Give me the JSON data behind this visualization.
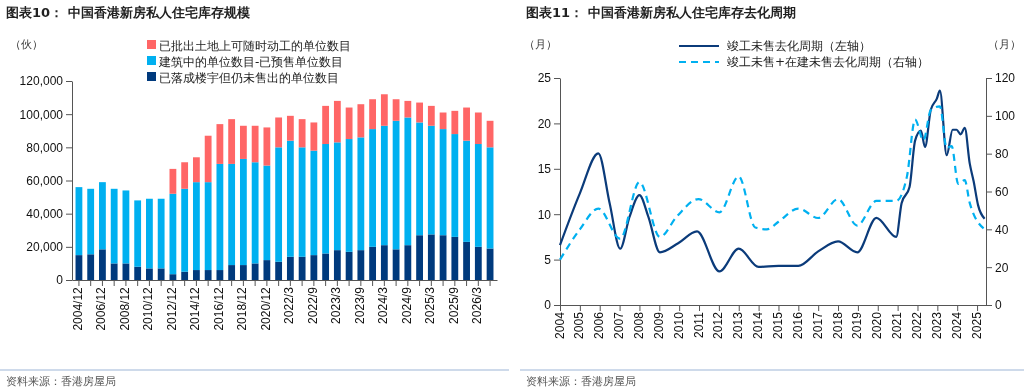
{
  "chart_data": [
    {
      "type": "bar",
      "title": "图表10：  中国香港新房私人住宅库存规模",
      "ylabel": "（伙）",
      "stacked": true,
      "legend": "top",
      "categories": [
        "2004/12",
        null,
        "2006/12",
        null,
        "2008/12",
        null,
        "2010/12",
        null,
        "2012/12",
        null,
        "2014/12",
        null,
        "2016/12",
        null,
        "2018/12",
        null,
        "2020/12",
        null,
        "2022/3",
        null,
        "2022/9",
        null,
        "2023/3",
        null,
        "2023/9",
        null,
        "2024/3",
        null,
        "2024/9",
        null,
        "2025/3",
        null,
        "2025/9",
        null,
        "2026/3",
        null
      ],
      "ylim": [
        0,
        120000
      ],
      "yticks": [
        0,
        {
          "value": 20000,
          "label": "20,000"
        },
        {
          "value": 40000,
          "label": "40,000"
        },
        {
          "value": 60000,
          "label": "60,000"
        },
        {
          "value": 80000,
          "label": "80,000"
        },
        {
          "value": 100000,
          "label": "100,000"
        },
        {
          "value": 120000,
          "label": "120,000"
        }
      ],
      "series": [
        {
          "name": "已落成楼宇但仍未售出的单位数目",
          "color": "#003a7d",
          "values": [
            15000,
            15500,
            18500,
            10000,
            10000,
            8000,
            7000,
            7000,
            3500,
            5000,
            6000,
            6000,
            6000,
            9000,
            9000,
            10000,
            12000,
            11000,
            14000,
            14000,
            15000,
            16000,
            18000,
            17000,
            18000,
            20000,
            21000,
            18500,
            21000,
            27000,
            27500,
            27000,
            26000,
            23000,
            20000,
            19000
          ]
        },
        {
          "name": "建筑中的单位数目-已预售单位数目",
          "color": "#00b0f0",
          "values": [
            41000,
            39500,
            40500,
            45000,
            44000,
            40000,
            42000,
            42000,
            48500,
            50000,
            53000,
            53000,
            64000,
            61000,
            64000,
            61000,
            57000,
            69000,
            70000,
            66000,
            63000,
            66000,
            65000,
            68000,
            68000,
            71000,
            72000,
            77500,
            77000,
            68000,
            65500,
            64000,
            62000,
            61000,
            62000,
            61000
          ]
        },
        {
          "name": "已批出土地上可随时动工的单位数目",
          "color": "#ff6666",
          "values": [
            0,
            0,
            0,
            0,
            0,
            0,
            0,
            0,
            15000,
            16000,
            15000,
            28000,
            24000,
            27000,
            20000,
            22000,
            23000,
            18000,
            15000,
            17000,
            17000,
            23000,
            25000,
            19000,
            20000,
            18000,
            19000,
            13000,
            10000,
            12000,
            12000,
            10000,
            14000,
            20000,
            19000,
            16000
          ]
        }
      ],
      "annotations": [
        "资料来源：香港房屋局"
      ]
    },
    {
      "type": "line",
      "title": "图表11：  中国香港新房私人住宅库存去化周期",
      "ylabel": "（月）",
      "y2label": "（月）",
      "legend": "top",
      "xlim": [
        2004,
        2025.45
      ],
      "xticks": [
        2004,
        2005,
        2006,
        2007,
        2008,
        2009,
        2010,
        2011,
        2012,
        2013,
        2014,
        2015,
        2016,
        2017,
        2018,
        2019,
        2020,
        2021,
        2022,
        2023,
        2024,
        2025
      ],
      "ylim": [
        0,
        25
      ],
      "yticks": [
        0,
        5,
        10,
        15,
        20,
        25
      ],
      "y2lim": [
        0,
        120
      ],
      "y2ticks": [
        0,
        20,
        40,
        60,
        80,
        100,
        120
      ],
      "series": [
        {
          "name": "竣工未售去化周期（左轴）",
          "color": "#0b3b7a",
          "line_style": "solid",
          "x": [
            2004,
            2005,
            2005.93,
            2006.5,
            2007.03,
            2007.5,
            2008,
            2008.45,
            2009.03,
            2009.95,
            2010.9,
            2012.03,
            2013,
            2014,
            2015,
            2016,
            2017,
            2018,
            2018.97,
            2019.93,
            2020.93,
            2021.2,
            2021.6,
            2021.88,
            2022.17,
            2022.38,
            2022.67,
            2022.97,
            2023.13,
            2023.47,
            2023.77,
            2023.97,
            2024.17,
            2024.38,
            2024.63,
            2024.83,
            2025.05,
            2025.38
          ],
          "values": [
            6.6,
            12.3,
            16.7,
            11.2,
            6.2,
            9.7,
            12.1,
            9.7,
            5.8,
            6.8,
            8.1,
            3.7,
            6.2,
            4.2,
            4.3,
            4.3,
            5.9,
            7.0,
            5.8,
            9.6,
            7.5,
            11.2,
            13.0,
            18.1,
            19.2,
            17.4,
            21.5,
            22.7,
            23.6,
            16.5,
            19.3,
            19.3,
            18.8,
            19.5,
            15.6,
            13.6,
            11.0,
            9.5
          ]
        },
        {
          "name": "竣工未售+在建未售去化周期（右轴）",
          "color": "#00b0f0",
          "line_style": "dashed",
          "axis": "y2",
          "x": [
            2004,
            2005,
            2005.93,
            2007.03,
            2008,
            2009.03,
            2009.9,
            2010.97,
            2012.03,
            2013,
            2013.83,
            2014.42,
            2015,
            2016,
            2017,
            2018,
            2018.97,
            2019.93,
            2020.93,
            2021.47,
            2021.88,
            2022.3,
            2022.67,
            2023.13,
            2023.47,
            2023.72,
            2024.05,
            2024.38,
            2024.63,
            2025.38
          ],
          "values": [
            24,
            40,
            51,
            35,
            65,
            36,
            47,
            56,
            49,
            68,
            41,
            40,
            44,
            51,
            46,
            56,
            42,
            55,
            55,
            68,
            98,
            87,
            103,
            105,
            83,
            84,
            64,
            66,
            54,
            40
          ]
        }
      ],
      "annotations": [
        "资料来源：香港房屋局"
      ]
    }
  ]
}
